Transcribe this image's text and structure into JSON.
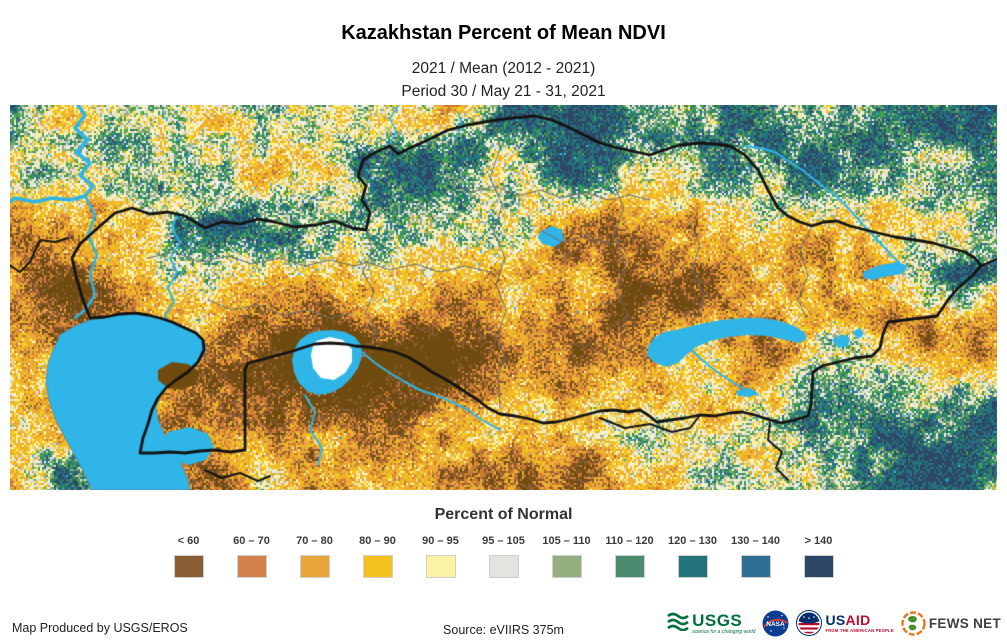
{
  "header": {
    "title": "Kazakhstan Percent of Mean NDVI",
    "subtitle1": "2021 / Mean (2012 - 2021)",
    "subtitle2": "Period 30 / May 21 - 31, 2021"
  },
  "map": {
    "description": "eVIIRS NDVI percent-of-normal raster map of Kazakhstan and surrounding region with international borders and water bodies",
    "border_color": "#141414",
    "admin_line_color": "#6a6a6a",
    "water_color": "#2FB5E8",
    "water_edge_color": "#5E8FA6",
    "no_data_color": "#FFFFFF",
    "palette": {
      "dark_brown": "#6F4B10",
      "brown": "#8A5C33",
      "dark_orange": "#CE7B35",
      "orange": "#E9A63A",
      "gold": "#F0BC20",
      "yellow": "#F7D324",
      "pale_yellow": "#FBF2A0",
      "off_white": "#F3F1E7",
      "light_gray": "#DEDDD5",
      "sage": "#94AE80",
      "green": "#44A14E",
      "dark_green": "#2F8C58",
      "teal": "#23737B",
      "blue": "#2B6E92",
      "navy": "#2E4766"
    }
  },
  "legend": {
    "title": "Percent of Normal",
    "classes": [
      {
        "label": "< 60",
        "color": "#8A5C33"
      },
      {
        "label": "60 – 70",
        "color": "#D2834C"
      },
      {
        "label": "70 – 80",
        "color": "#E9A63A"
      },
      {
        "label": "80 – 90",
        "color": "#F3C21E"
      },
      {
        "label": "90 – 95",
        "color": "#FBF3A3"
      },
      {
        "label": "95 – 105",
        "color": "#E3E3E0"
      },
      {
        "label": "105 – 110",
        "color": "#94AE80"
      },
      {
        "label": "110 – 120",
        "color": "#4D8B70"
      },
      {
        "label": "120 – 130",
        "color": "#23737B"
      },
      {
        "label": "130 – 140",
        "color": "#2B6E92"
      },
      {
        "label": "> 140",
        "color": "#2E4766"
      }
    ]
  },
  "footer": {
    "produced_by": "Map Produced by USGS/EROS",
    "source": "Source: eVIIRS 375m",
    "logos": {
      "usgs": {
        "name": "USGS",
        "tagline": "science for a changing world",
        "color": "#00703C"
      },
      "nasa": {
        "name": "NASA",
        "color": "#0B3D91",
        "accent": "#FC3D21"
      },
      "usaid": {
        "name_us": "US",
        "name_aid": "AID",
        "tagline": "FROM THE AMERICAN PEOPLE",
        "blue": "#002F6C",
        "red": "#BA0C2F"
      },
      "fewsnet": {
        "name": "FEWS NET",
        "orange": "#E87722",
        "green": "#4C8C2B"
      }
    }
  }
}
